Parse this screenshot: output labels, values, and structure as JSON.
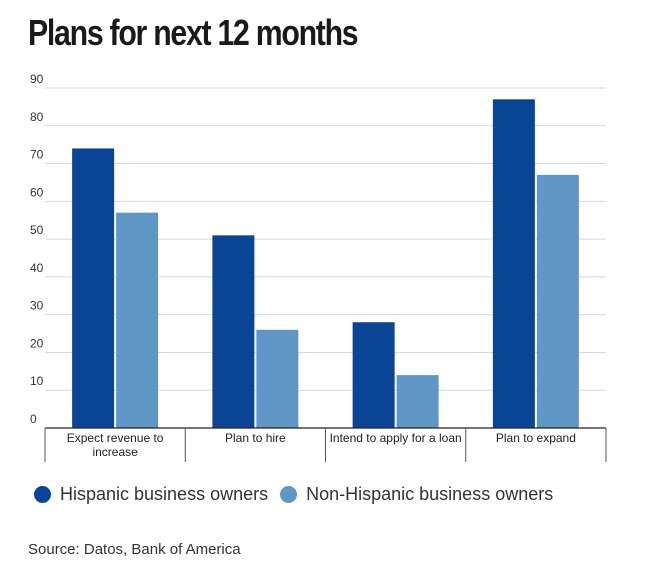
{
  "title": "Plans for next 12 months",
  "source": "Source: Datos, Bank of America",
  "colors": {
    "hispanic": "#0a4595",
    "non_hispanic": "#6096c6",
    "grid": "#d9d9d9",
    "axis": "#222222"
  },
  "legend": [
    {
      "label": "Hispanic business owners",
      "color": "#0a4595"
    },
    {
      "label": "Non-Hispanic business owners",
      "color": "#6096c6"
    }
  ],
  "chart_data": {
    "type": "bar",
    "title": "Plans for next 12 months",
    "xlabel": "",
    "ylabel": "",
    "ylim": [
      0,
      90
    ],
    "yticks": [
      0,
      10,
      20,
      30,
      40,
      50,
      60,
      70,
      80,
      90
    ],
    "grid": true,
    "legend_position": "bottom",
    "categories": [
      [
        "Expect revenue to",
        "increase"
      ],
      [
        "Plan to hire"
      ],
      [
        "Intend to apply for a loan"
      ],
      [
        "Plan to expand"
      ]
    ],
    "series": [
      {
        "name": "Hispanic business owners",
        "color": "#0a4595",
        "values": [
          74,
          51,
          28,
          87
        ]
      },
      {
        "name": "Non-Hispanic business owners",
        "color": "#6096c6",
        "values": [
          57,
          26,
          14,
          67
        ]
      }
    ]
  }
}
